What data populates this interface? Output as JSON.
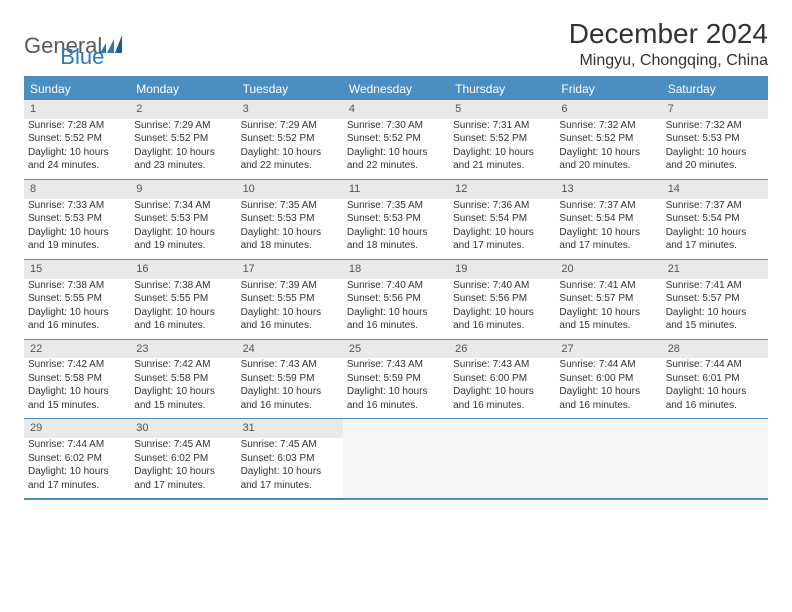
{
  "logo": {
    "text1": "General",
    "text2": "Blue"
  },
  "header": {
    "month_title": "December 2024",
    "location": "Mingyu, Chongqing, China"
  },
  "colors": {
    "header_bg": "#4a8ec2",
    "header_text": "#ffffff",
    "daynum_bg": "#e9e9e9",
    "border": "#4a8ec2",
    "empty_bg": "#f5f5f5"
  },
  "fonts": {
    "title_size_pt": 21,
    "location_size_pt": 12,
    "header_size_pt": 9,
    "cell_size_pt": 7.5
  },
  "weekdays": [
    "Sunday",
    "Monday",
    "Tuesday",
    "Wednesday",
    "Thursday",
    "Friday",
    "Saturday"
  ],
  "weeks": [
    [
      {
        "day": "1",
        "sunrise": "Sunrise: 7:28 AM",
        "sunset": "Sunset: 5:52 PM",
        "daylight": "Daylight: 10 hours and 24 minutes."
      },
      {
        "day": "2",
        "sunrise": "Sunrise: 7:29 AM",
        "sunset": "Sunset: 5:52 PM",
        "daylight": "Daylight: 10 hours and 23 minutes."
      },
      {
        "day": "3",
        "sunrise": "Sunrise: 7:29 AM",
        "sunset": "Sunset: 5:52 PM",
        "daylight": "Daylight: 10 hours and 22 minutes."
      },
      {
        "day": "4",
        "sunrise": "Sunrise: 7:30 AM",
        "sunset": "Sunset: 5:52 PM",
        "daylight": "Daylight: 10 hours and 22 minutes."
      },
      {
        "day": "5",
        "sunrise": "Sunrise: 7:31 AM",
        "sunset": "Sunset: 5:52 PM",
        "daylight": "Daylight: 10 hours and 21 minutes."
      },
      {
        "day": "6",
        "sunrise": "Sunrise: 7:32 AM",
        "sunset": "Sunset: 5:52 PM",
        "daylight": "Daylight: 10 hours and 20 minutes."
      },
      {
        "day": "7",
        "sunrise": "Sunrise: 7:32 AM",
        "sunset": "Sunset: 5:53 PM",
        "daylight": "Daylight: 10 hours and 20 minutes."
      }
    ],
    [
      {
        "day": "8",
        "sunrise": "Sunrise: 7:33 AM",
        "sunset": "Sunset: 5:53 PM",
        "daylight": "Daylight: 10 hours and 19 minutes."
      },
      {
        "day": "9",
        "sunrise": "Sunrise: 7:34 AM",
        "sunset": "Sunset: 5:53 PM",
        "daylight": "Daylight: 10 hours and 19 minutes."
      },
      {
        "day": "10",
        "sunrise": "Sunrise: 7:35 AM",
        "sunset": "Sunset: 5:53 PM",
        "daylight": "Daylight: 10 hours and 18 minutes."
      },
      {
        "day": "11",
        "sunrise": "Sunrise: 7:35 AM",
        "sunset": "Sunset: 5:53 PM",
        "daylight": "Daylight: 10 hours and 18 minutes."
      },
      {
        "day": "12",
        "sunrise": "Sunrise: 7:36 AM",
        "sunset": "Sunset: 5:54 PM",
        "daylight": "Daylight: 10 hours and 17 minutes."
      },
      {
        "day": "13",
        "sunrise": "Sunrise: 7:37 AM",
        "sunset": "Sunset: 5:54 PM",
        "daylight": "Daylight: 10 hours and 17 minutes."
      },
      {
        "day": "14",
        "sunrise": "Sunrise: 7:37 AM",
        "sunset": "Sunset: 5:54 PM",
        "daylight": "Daylight: 10 hours and 17 minutes."
      }
    ],
    [
      {
        "day": "15",
        "sunrise": "Sunrise: 7:38 AM",
        "sunset": "Sunset: 5:55 PM",
        "daylight": "Daylight: 10 hours and 16 minutes."
      },
      {
        "day": "16",
        "sunrise": "Sunrise: 7:38 AM",
        "sunset": "Sunset: 5:55 PM",
        "daylight": "Daylight: 10 hours and 16 minutes."
      },
      {
        "day": "17",
        "sunrise": "Sunrise: 7:39 AM",
        "sunset": "Sunset: 5:55 PM",
        "daylight": "Daylight: 10 hours and 16 minutes."
      },
      {
        "day": "18",
        "sunrise": "Sunrise: 7:40 AM",
        "sunset": "Sunset: 5:56 PM",
        "daylight": "Daylight: 10 hours and 16 minutes."
      },
      {
        "day": "19",
        "sunrise": "Sunrise: 7:40 AM",
        "sunset": "Sunset: 5:56 PM",
        "daylight": "Daylight: 10 hours and 16 minutes."
      },
      {
        "day": "20",
        "sunrise": "Sunrise: 7:41 AM",
        "sunset": "Sunset: 5:57 PM",
        "daylight": "Daylight: 10 hours and 15 minutes."
      },
      {
        "day": "21",
        "sunrise": "Sunrise: 7:41 AM",
        "sunset": "Sunset: 5:57 PM",
        "daylight": "Daylight: 10 hours and 15 minutes."
      }
    ],
    [
      {
        "day": "22",
        "sunrise": "Sunrise: 7:42 AM",
        "sunset": "Sunset: 5:58 PM",
        "daylight": "Daylight: 10 hours and 15 minutes."
      },
      {
        "day": "23",
        "sunrise": "Sunrise: 7:42 AM",
        "sunset": "Sunset: 5:58 PM",
        "daylight": "Daylight: 10 hours and 15 minutes."
      },
      {
        "day": "24",
        "sunrise": "Sunrise: 7:43 AM",
        "sunset": "Sunset: 5:59 PM",
        "daylight": "Daylight: 10 hours and 16 minutes."
      },
      {
        "day": "25",
        "sunrise": "Sunrise: 7:43 AM",
        "sunset": "Sunset: 5:59 PM",
        "daylight": "Daylight: 10 hours and 16 minutes."
      },
      {
        "day": "26",
        "sunrise": "Sunrise: 7:43 AM",
        "sunset": "Sunset: 6:00 PM",
        "daylight": "Daylight: 10 hours and 16 minutes."
      },
      {
        "day": "27",
        "sunrise": "Sunrise: 7:44 AM",
        "sunset": "Sunset: 6:00 PM",
        "daylight": "Daylight: 10 hours and 16 minutes."
      },
      {
        "day": "28",
        "sunrise": "Sunrise: 7:44 AM",
        "sunset": "Sunset: 6:01 PM",
        "daylight": "Daylight: 10 hours and 16 minutes."
      }
    ],
    [
      {
        "day": "29",
        "sunrise": "Sunrise: 7:44 AM",
        "sunset": "Sunset: 6:02 PM",
        "daylight": "Daylight: 10 hours and 17 minutes."
      },
      {
        "day": "30",
        "sunrise": "Sunrise: 7:45 AM",
        "sunset": "Sunset: 6:02 PM",
        "daylight": "Daylight: 10 hours and 17 minutes."
      },
      {
        "day": "31",
        "sunrise": "Sunrise: 7:45 AM",
        "sunset": "Sunset: 6:03 PM",
        "daylight": "Daylight: 10 hours and 17 minutes."
      },
      {
        "empty": true
      },
      {
        "empty": true
      },
      {
        "empty": true
      },
      {
        "empty": true
      }
    ]
  ]
}
